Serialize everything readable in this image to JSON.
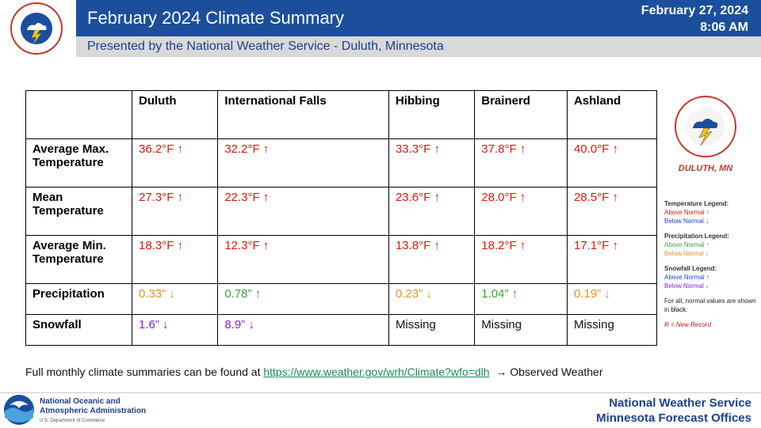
{
  "header": {
    "title": "February 2024 Climate Summary",
    "subtitle": "Presented by the National Weather Service - Duluth, Minnesota",
    "date": "February 27, 2024",
    "time": "8:06 AM"
  },
  "table": {
    "columns": [
      "",
      "Duluth",
      "International Falls",
      "Hibbing",
      "Brainerd",
      "Ashland"
    ],
    "rows": [
      {
        "label": "Average Max. Temperature",
        "cells": [
          "36.2°F ↑",
          "32.2°F ↑",
          "33.3°F ↑",
          "37.8°F ↑",
          "40.0°F ↑"
        ],
        "colors": [
          "red",
          "red",
          "red",
          "red",
          "red"
        ]
      },
      {
        "label": "Mean Temperature",
        "cells": [
          "27.3°F ↑",
          "22.3°F ↑",
          "23.6°F ↑",
          "28.0°F ↑",
          "28.5°F ↑"
        ],
        "colors": [
          "red",
          "red",
          "red",
          "red",
          "red"
        ]
      },
      {
        "label": "Average Min. Temperature",
        "cells": [
          "18.3°F ↑",
          "12.3°F ↑",
          "13.8°F ↑",
          "18.2°F ↑",
          "17.1°F ↑"
        ],
        "colors": [
          "red",
          "red",
          "red",
          "red",
          "red"
        ]
      },
      {
        "label": "Precipitation",
        "cells": [
          "0.33” ↓",
          "0.78” ↑",
          "0.23” ↓",
          "1.04” ↑",
          "0.19” ↓"
        ],
        "colors": [
          "orange",
          "green",
          "orange",
          "green",
          "orange"
        ]
      },
      {
        "label": "Snowfall",
        "cells": [
          "1.6” ↓",
          "8.9” ↓",
          "Missing",
          "Missing",
          "Missing"
        ],
        "colors": [
          "purple",
          "purple",
          "black",
          "black",
          "black"
        ]
      }
    ]
  },
  "legend": {
    "temp_title": "Temperature Legend:",
    "temp_above": "Above Normal ↑",
    "temp_below": "Below Normal ↓",
    "precip_title": "Precipitation Legend:",
    "precip_above": "Above Normal ↑",
    "precip_below": "Below Normal ↓",
    "snow_title": "Snowfall Legend:",
    "snow_above": "Above Normal ↑",
    "snow_below": "Below Normal ↓",
    "note_prefix": "For all, normal values are shown in ",
    "note_black": "black",
    "note_suffix": ".",
    "record": "R = New Record"
  },
  "logo_right": {
    "arc_text": "NATIONAL WEATHER SERVICE",
    "location": "DULUTH, MN"
  },
  "logo_top": {
    "arc_text": "NATIONAL WEATHER SERVICE"
  },
  "footer": {
    "text": "Full monthly climate summaries can be found at",
    "link": "https://www.weather.gov/wrh/Climate?wfo=dlh",
    "arrow_text": "→ Observed Weather",
    "noaa_line1": "National Oceanic and",
    "noaa_line2": "Atmospheric Administration",
    "noaa_line3": "U.S. Department of Commerce",
    "nws_line1": "National Weather Service",
    "nws_line2": "Minnesota Forecast Offices"
  },
  "colors": {
    "header_blue": "#1b4f9c",
    "red": "#e0190f",
    "orange": "#e8902a",
    "green": "#3aa335",
    "purple": "#8a1fd1",
    "blue": "#1b3fd6"
  }
}
